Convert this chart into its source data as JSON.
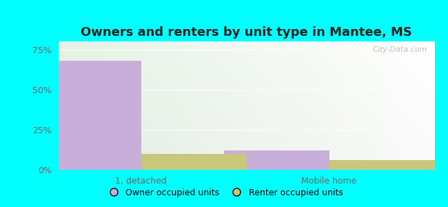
{
  "title": "Owners and renters by unit type in Mantee, MS",
  "categories": [
    "1, detached",
    "Mobile home"
  ],
  "owner_values": [
    68.0,
    12.0
  ],
  "renter_values": [
    10.0,
    6.0
  ],
  "owner_color": "#c8aed8",
  "renter_color": "#c8c87a",
  "yticks": [
    0,
    25,
    50,
    75
  ],
  "ytick_labels": [
    "0%",
    "25%",
    "50%",
    "75%"
  ],
  "ylim": [
    0,
    80
  ],
  "bar_width": 0.28,
  "outer_background": "#00ffff",
  "watermark": "City-Data.com",
  "title_fontsize": 13,
  "axis_fontsize": 9,
  "legend_fontsize": 9,
  "tick_color": "#666666"
}
